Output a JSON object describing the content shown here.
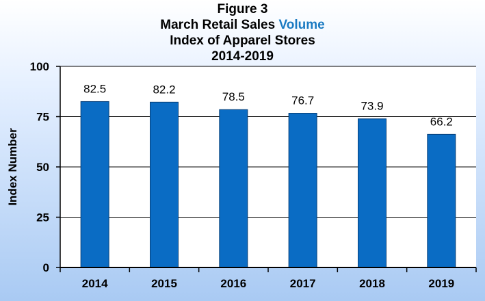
{
  "chart_data": {
    "type": "bar",
    "title_line1": "Figure 3",
    "title_line2_prefix": "March Retail Sales ",
    "title_line2_accent": "Volume",
    "title_line3": "Index of Apparel Stores",
    "title_line4": "2014-2019",
    "xlabel": "",
    "ylabel": "Index Number",
    "categories": [
      "2014",
      "2015",
      "2016",
      "2017",
      "2018",
      "2019"
    ],
    "values": [
      82.5,
      82.2,
      78.5,
      76.7,
      73.9,
      66.2
    ],
    "value_labels": [
      "82.5",
      "82.2",
      "78.5",
      "76.7",
      "73.9",
      "66.2"
    ],
    "ylim": [
      0,
      100
    ],
    "yticks": [
      0,
      25,
      50,
      75,
      100
    ],
    "ytick_labels": [
      "0",
      "25",
      "50",
      "75",
      "100"
    ],
    "grid": true,
    "legend": "none",
    "colors": {
      "bar": "#0a6cc4",
      "bar_stroke": "#063f78",
      "accent_title": "#1a7ac2",
      "plot_background": "#ffffff",
      "grid": "#000000"
    }
  }
}
